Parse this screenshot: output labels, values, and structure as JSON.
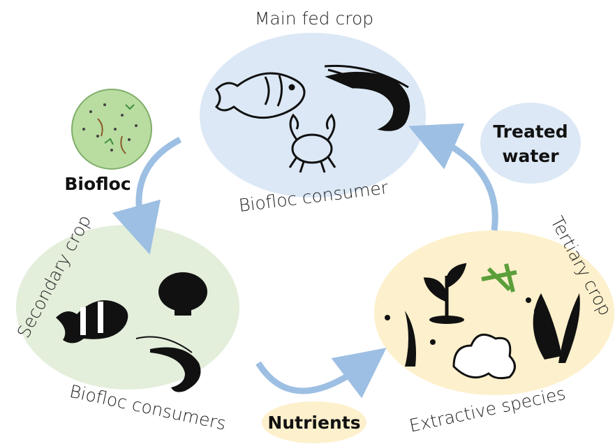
{
  "nodes": [
    {
      "title": "Main fed crop",
      "caption": "Biofloc consumer"
    },
    {
      "title": "Secondary crop",
      "caption": "Biofloc consumers"
    },
    {
      "title": "Tertiary crop",
      "caption": "Extractive species"
    }
  ],
  "labels": {
    "biofloc": "Biofloc",
    "treated_water": [
      "Treated",
      "water"
    ],
    "nutrients": "Nutrients"
  }
}
